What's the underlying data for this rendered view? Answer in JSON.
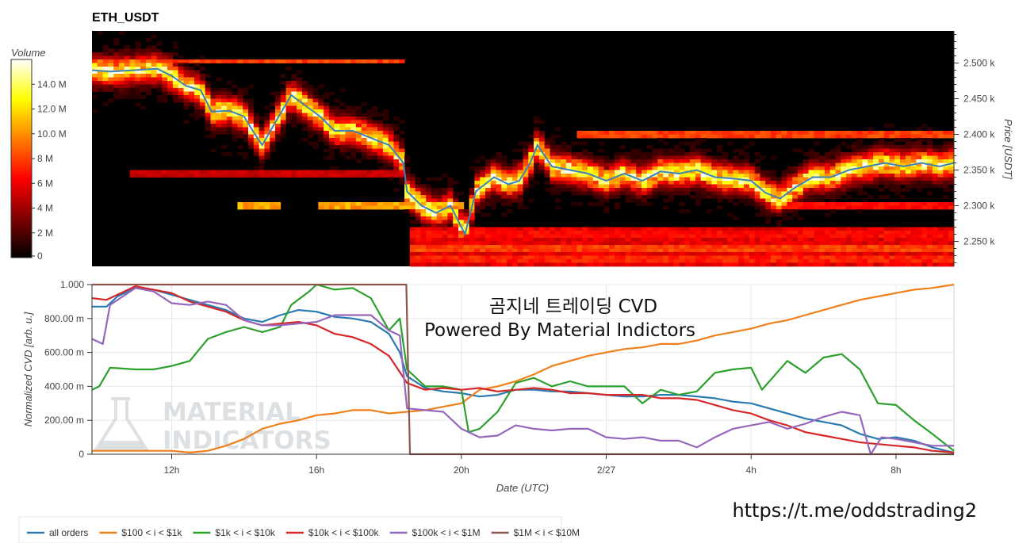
{
  "title": "ETH_USDT",
  "heatmap": {
    "colorbar_label": "Volume",
    "colorbar_ticks": [
      "14.0 M",
      "12.0 M",
      "10.0 M",
      "8 M",
      "6 M",
      "4 M",
      "2 M",
      "0"
    ],
    "colorbar_values": [
      14,
      12,
      10,
      8,
      6,
      4,
      2,
      0
    ],
    "vmax": 16,
    "price_ticks": [
      "2.500 k",
      "2.450 k",
      "2.400 k",
      "2.350 k",
      "2.300 k",
      "2.250 k"
    ],
    "price_values": [
      2500,
      2450,
      2400,
      2350,
      2300,
      2250
    ],
    "ylim": [
      2215,
      2545
    ],
    "ylabel": "Price [USDT]"
  },
  "overlay": {
    "line1": "곰지네 트레이딩 CVD",
    "line2": "Powered By Material Indictors"
  },
  "watermark": {
    "line1": "MATERIAL",
    "line2": "INDICATORS"
  },
  "url": "https://t.me/oddstrading2",
  "chart_data": {
    "type": "line",
    "title": "ETH_USDT",
    "xlabel": "Date (UTC)",
    "ylabel": "Normalized CVD [arb. u.]",
    "x_ticks": [
      "12h",
      "16h",
      "20h",
      "2/27",
      "4h",
      "8h"
    ],
    "x_tick_hours": [
      12,
      16,
      20,
      24,
      28,
      32
    ],
    "xlim": [
      9.8,
      33.6
    ],
    "y_ticks": [
      "1.000",
      "800.00 m",
      "600.00 m",
      "400.00 m",
      "200.00 m",
      "0"
    ],
    "y_tick_values": [
      1.0,
      0.8,
      0.6,
      0.4,
      0.2,
      0
    ],
    "ylim": [
      0,
      1
    ],
    "grid": true,
    "legend_position": "bottom-left",
    "price_series": [
      [
        9.8,
        2490
      ],
      [
        10.3,
        2488
      ],
      [
        11,
        2490
      ],
      [
        11.6,
        2492
      ],
      [
        12,
        2482
      ],
      [
        12.4,
        2468
      ],
      [
        12.8,
        2462
      ],
      [
        13.1,
        2432
      ],
      [
        13.6,
        2433
      ],
      [
        14,
        2425
      ],
      [
        14.3,
        2400
      ],
      [
        14.5,
        2385
      ],
      [
        14.9,
        2420
      ],
      [
        15.3,
        2455
      ],
      [
        15.7,
        2440
      ],
      [
        16.1,
        2425
      ],
      [
        16.5,
        2405
      ],
      [
        17,
        2405
      ],
      [
        17.5,
        2395
      ],
      [
        18,
        2385
      ],
      [
        18.4,
        2360
      ],
      [
        18.5,
        2320
      ],
      [
        18.9,
        2300
      ],
      [
        19.3,
        2290
      ],
      [
        19.7,
        2300
      ],
      [
        20.1,
        2260
      ],
      [
        20.4,
        2320
      ],
      [
        20.9,
        2340
      ],
      [
        21.3,
        2330
      ],
      [
        21.6,
        2335
      ],
      [
        21.9,
        2360
      ],
      [
        22.1,
        2385
      ],
      [
        22.5,
        2355
      ],
      [
        23,
        2350
      ],
      [
        23.5,
        2345
      ],
      [
        24,
        2335
      ],
      [
        24.5,
        2345
      ],
      [
        25,
        2335
      ],
      [
        25.5,
        2348
      ],
      [
        26,
        2345
      ],
      [
        26.5,
        2350
      ],
      [
        27,
        2340
      ],
      [
        27.5,
        2338
      ],
      [
        28,
        2335
      ],
      [
        28.4,
        2318
      ],
      [
        28.8,
        2310
      ],
      [
        29.2,
        2325
      ],
      [
        29.7,
        2340
      ],
      [
        30.2,
        2340
      ],
      [
        30.7,
        2350
      ],
      [
        31.2,
        2355
      ],
      [
        31.7,
        2360
      ],
      [
        32.2,
        2355
      ],
      [
        32.7,
        2360
      ],
      [
        33.2,
        2355
      ],
      [
        33.6,
        2360
      ]
    ],
    "series": [
      {
        "name": "all orders",
        "color": "#2a7ab0",
        "points": [
          [
            9.8,
            0.87
          ],
          [
            10.2,
            0.87
          ],
          [
            10.5,
            0.93
          ],
          [
            11,
            0.98
          ],
          [
            11.5,
            0.97
          ],
          [
            12,
            0.94
          ],
          [
            12.5,
            0.91
          ],
          [
            13,
            0.88
          ],
          [
            13.5,
            0.85
          ],
          [
            14,
            0.8
          ],
          [
            14.5,
            0.78
          ],
          [
            15,
            0.82
          ],
          [
            15.5,
            0.85
          ],
          [
            16,
            0.84
          ],
          [
            16.5,
            0.81
          ],
          [
            17,
            0.8
          ],
          [
            17.5,
            0.78
          ],
          [
            18,
            0.71
          ],
          [
            18.3,
            0.6
          ],
          [
            18.5,
            0.46
          ],
          [
            19,
            0.39
          ],
          [
            19.5,
            0.37
          ],
          [
            20,
            0.36
          ],
          [
            20.5,
            0.34
          ],
          [
            21,
            0.35
          ],
          [
            21.5,
            0.38
          ],
          [
            22,
            0.38
          ],
          [
            22.5,
            0.37
          ],
          [
            23,
            0.37
          ],
          [
            23.5,
            0.36
          ],
          [
            24,
            0.35
          ],
          [
            24.5,
            0.34
          ],
          [
            25,
            0.34
          ],
          [
            25.5,
            0.35
          ],
          [
            26,
            0.35
          ],
          [
            26.5,
            0.34
          ],
          [
            27,
            0.33
          ],
          [
            27.5,
            0.31
          ],
          [
            28,
            0.3
          ],
          [
            28.5,
            0.27
          ],
          [
            29,
            0.24
          ],
          [
            29.5,
            0.21
          ],
          [
            30,
            0.19
          ],
          [
            30.5,
            0.17
          ],
          [
            31,
            0.12
          ],
          [
            31.5,
            0.09
          ],
          [
            32,
            0.1
          ],
          [
            32.5,
            0.08
          ],
          [
            33,
            0.04
          ],
          [
            33.6,
            0.01
          ]
        ]
      },
      {
        "name": "$100 < i < $1k",
        "color": "#f07f1a",
        "points": [
          [
            9.8,
            0.02
          ],
          [
            10.5,
            0.02
          ],
          [
            11,
            0.02
          ],
          [
            11.5,
            0.02
          ],
          [
            12,
            0.02
          ],
          [
            12.5,
            0.01
          ],
          [
            13,
            0.02
          ],
          [
            13.5,
            0.05
          ],
          [
            14,
            0.09
          ],
          [
            14.5,
            0.15
          ],
          [
            15,
            0.18
          ],
          [
            15.5,
            0.2
          ],
          [
            16,
            0.23
          ],
          [
            16.5,
            0.24
          ],
          [
            17,
            0.26
          ],
          [
            17.5,
            0.26
          ],
          [
            18,
            0.24
          ],
          [
            18.5,
            0.25
          ],
          [
            19,
            0.26
          ],
          [
            19.5,
            0.28
          ],
          [
            20,
            0.3
          ],
          [
            20.5,
            0.38
          ],
          [
            21,
            0.4
          ],
          [
            21.5,
            0.43
          ],
          [
            22,
            0.47
          ],
          [
            22.5,
            0.52
          ],
          [
            23,
            0.55
          ],
          [
            23.5,
            0.58
          ],
          [
            24,
            0.6
          ],
          [
            24.5,
            0.62
          ],
          [
            25,
            0.63
          ],
          [
            25.5,
            0.65
          ],
          [
            26,
            0.65
          ],
          [
            26.5,
            0.67
          ],
          [
            27,
            0.7
          ],
          [
            27.5,
            0.72
          ],
          [
            28,
            0.74
          ],
          [
            28.5,
            0.77
          ],
          [
            29,
            0.79
          ],
          [
            29.5,
            0.82
          ],
          [
            30,
            0.85
          ],
          [
            30.5,
            0.88
          ],
          [
            31,
            0.91
          ],
          [
            31.5,
            0.93
          ],
          [
            32,
            0.95
          ],
          [
            32.5,
            0.97
          ],
          [
            33,
            0.98
          ],
          [
            33.6,
            1.0
          ]
        ]
      },
      {
        "name": "$1k < i < $10k",
        "color": "#2ca02c",
        "points": [
          [
            9.8,
            0.38
          ],
          [
            10,
            0.4
          ],
          [
            10.3,
            0.51
          ],
          [
            11,
            0.5
          ],
          [
            11.5,
            0.5
          ],
          [
            12,
            0.52
          ],
          [
            12.5,
            0.55
          ],
          [
            13,
            0.68
          ],
          [
            13.5,
            0.72
          ],
          [
            14,
            0.75
          ],
          [
            14.5,
            0.72
          ],
          [
            15,
            0.75
          ],
          [
            15.3,
            0.88
          ],
          [
            15.8,
            0.96
          ],
          [
            16,
            1.0
          ],
          [
            16.5,
            0.97
          ],
          [
            17,
            0.98
          ],
          [
            17.5,
            0.92
          ],
          [
            18,
            0.73
          ],
          [
            18.3,
            0.8
          ],
          [
            18.5,
            0.5
          ],
          [
            19,
            0.4
          ],
          [
            19.5,
            0.4
          ],
          [
            20,
            0.38
          ],
          [
            20.2,
            0.13
          ],
          [
            20.5,
            0.15
          ],
          [
            21,
            0.25
          ],
          [
            21.5,
            0.42
          ],
          [
            22,
            0.45
          ],
          [
            22.5,
            0.4
          ],
          [
            23,
            0.43
          ],
          [
            23.5,
            0.4
          ],
          [
            24,
            0.4
          ],
          [
            24.5,
            0.4
          ],
          [
            25,
            0.3
          ],
          [
            25.5,
            0.38
          ],
          [
            26,
            0.35
          ],
          [
            26.5,
            0.37
          ],
          [
            27,
            0.48
          ],
          [
            27.5,
            0.5
          ],
          [
            28,
            0.51
          ],
          [
            28.3,
            0.38
          ],
          [
            29,
            0.55
          ],
          [
            29.5,
            0.48
          ],
          [
            30,
            0.57
          ],
          [
            30.5,
            0.59
          ],
          [
            31,
            0.5
          ],
          [
            31.5,
            0.3
          ],
          [
            32,
            0.29
          ],
          [
            32.5,
            0.2
          ],
          [
            33,
            0.12
          ],
          [
            33.6,
            0.02
          ]
        ]
      },
      {
        "name": "$10k < i < $100k",
        "color": "#d62728",
        "points": [
          [
            9.8,
            0.92
          ],
          [
            10.2,
            0.91
          ],
          [
            11,
            0.99
          ],
          [
            11.5,
            0.97
          ],
          [
            12,
            0.95
          ],
          [
            12.5,
            0.9
          ],
          [
            13,
            0.87
          ],
          [
            13.5,
            0.84
          ],
          [
            14,
            0.79
          ],
          [
            14.5,
            0.76
          ],
          [
            15,
            0.77
          ],
          [
            15.5,
            0.78
          ],
          [
            16,
            0.76
          ],
          [
            16.5,
            0.71
          ],
          [
            17,
            0.69
          ],
          [
            17.5,
            0.65
          ],
          [
            18,
            0.58
          ],
          [
            18.5,
            0.42
          ],
          [
            19,
            0.38
          ],
          [
            19.5,
            0.39
          ],
          [
            20,
            0.38
          ],
          [
            20.5,
            0.39
          ],
          [
            21,
            0.37
          ],
          [
            21.5,
            0.38
          ],
          [
            22,
            0.39
          ],
          [
            22.5,
            0.38
          ],
          [
            23,
            0.36
          ],
          [
            23.5,
            0.36
          ],
          [
            24,
            0.35
          ],
          [
            24.5,
            0.35
          ],
          [
            25,
            0.35
          ],
          [
            25.5,
            0.33
          ],
          [
            26,
            0.33
          ],
          [
            26.5,
            0.32
          ],
          [
            27,
            0.29
          ],
          [
            27.5,
            0.26
          ],
          [
            28,
            0.24
          ],
          [
            28.5,
            0.2
          ],
          [
            29,
            0.17
          ],
          [
            29.5,
            0.13
          ],
          [
            30,
            0.11
          ],
          [
            30.5,
            0.09
          ],
          [
            31,
            0.07
          ],
          [
            31.5,
            0.06
          ],
          [
            32,
            0.05
          ],
          [
            32.5,
            0.04
          ],
          [
            33,
            0.02
          ],
          [
            33.6,
            0.01
          ]
        ]
      },
      {
        "name": "$100k < i < $1M",
        "color": "#9467bd",
        "points": [
          [
            9.8,
            0.68
          ],
          [
            10.1,
            0.65
          ],
          [
            10.3,
            0.88
          ],
          [
            11,
            0.98
          ],
          [
            11.5,
            0.96
          ],
          [
            12,
            0.89
          ],
          [
            12.5,
            0.88
          ],
          [
            13,
            0.9
          ],
          [
            13.5,
            0.88
          ],
          [
            14,
            0.79
          ],
          [
            14.5,
            0.76
          ],
          [
            15,
            0.76
          ],
          [
            15.5,
            0.77
          ],
          [
            16,
            0.78
          ],
          [
            16.5,
            0.82
          ],
          [
            17,
            0.82
          ],
          [
            17.5,
            0.82
          ],
          [
            18,
            0.73
          ],
          [
            18.3,
            0.7
          ],
          [
            18.5,
            0.27
          ],
          [
            19,
            0.26
          ],
          [
            19.5,
            0.25
          ],
          [
            20,
            0.15
          ],
          [
            20.5,
            0.1
          ],
          [
            21,
            0.11
          ],
          [
            21.5,
            0.17
          ],
          [
            22,
            0.15
          ],
          [
            22.5,
            0.14
          ],
          [
            23,
            0.15
          ],
          [
            23.5,
            0.15
          ],
          [
            24,
            0.1
          ],
          [
            24.5,
            0.09
          ],
          [
            25,
            0.1
          ],
          [
            25.5,
            0.08
          ],
          [
            26,
            0.08
          ],
          [
            26.5,
            0.04
          ],
          [
            27,
            0.1
          ],
          [
            27.5,
            0.15
          ],
          [
            28,
            0.17
          ],
          [
            28.5,
            0.19
          ],
          [
            29,
            0.15
          ],
          [
            29.5,
            0.18
          ],
          [
            30,
            0.22
          ],
          [
            30.5,
            0.25
          ],
          [
            31,
            0.23
          ],
          [
            31.3,
            0.0
          ],
          [
            31.6,
            0.1
          ],
          [
            32,
            0.09
          ],
          [
            32.5,
            0.07
          ],
          [
            33,
            0.05
          ],
          [
            33.6,
            0.05
          ]
        ]
      },
      {
        "name": "$1M < i < $10M",
        "color": "#8c564b",
        "points": [
          [
            9.8,
            1.0
          ],
          [
            18.48,
            1.0
          ],
          [
            18.58,
            0.0
          ],
          [
            33.6,
            0.0
          ]
        ]
      }
    ]
  }
}
